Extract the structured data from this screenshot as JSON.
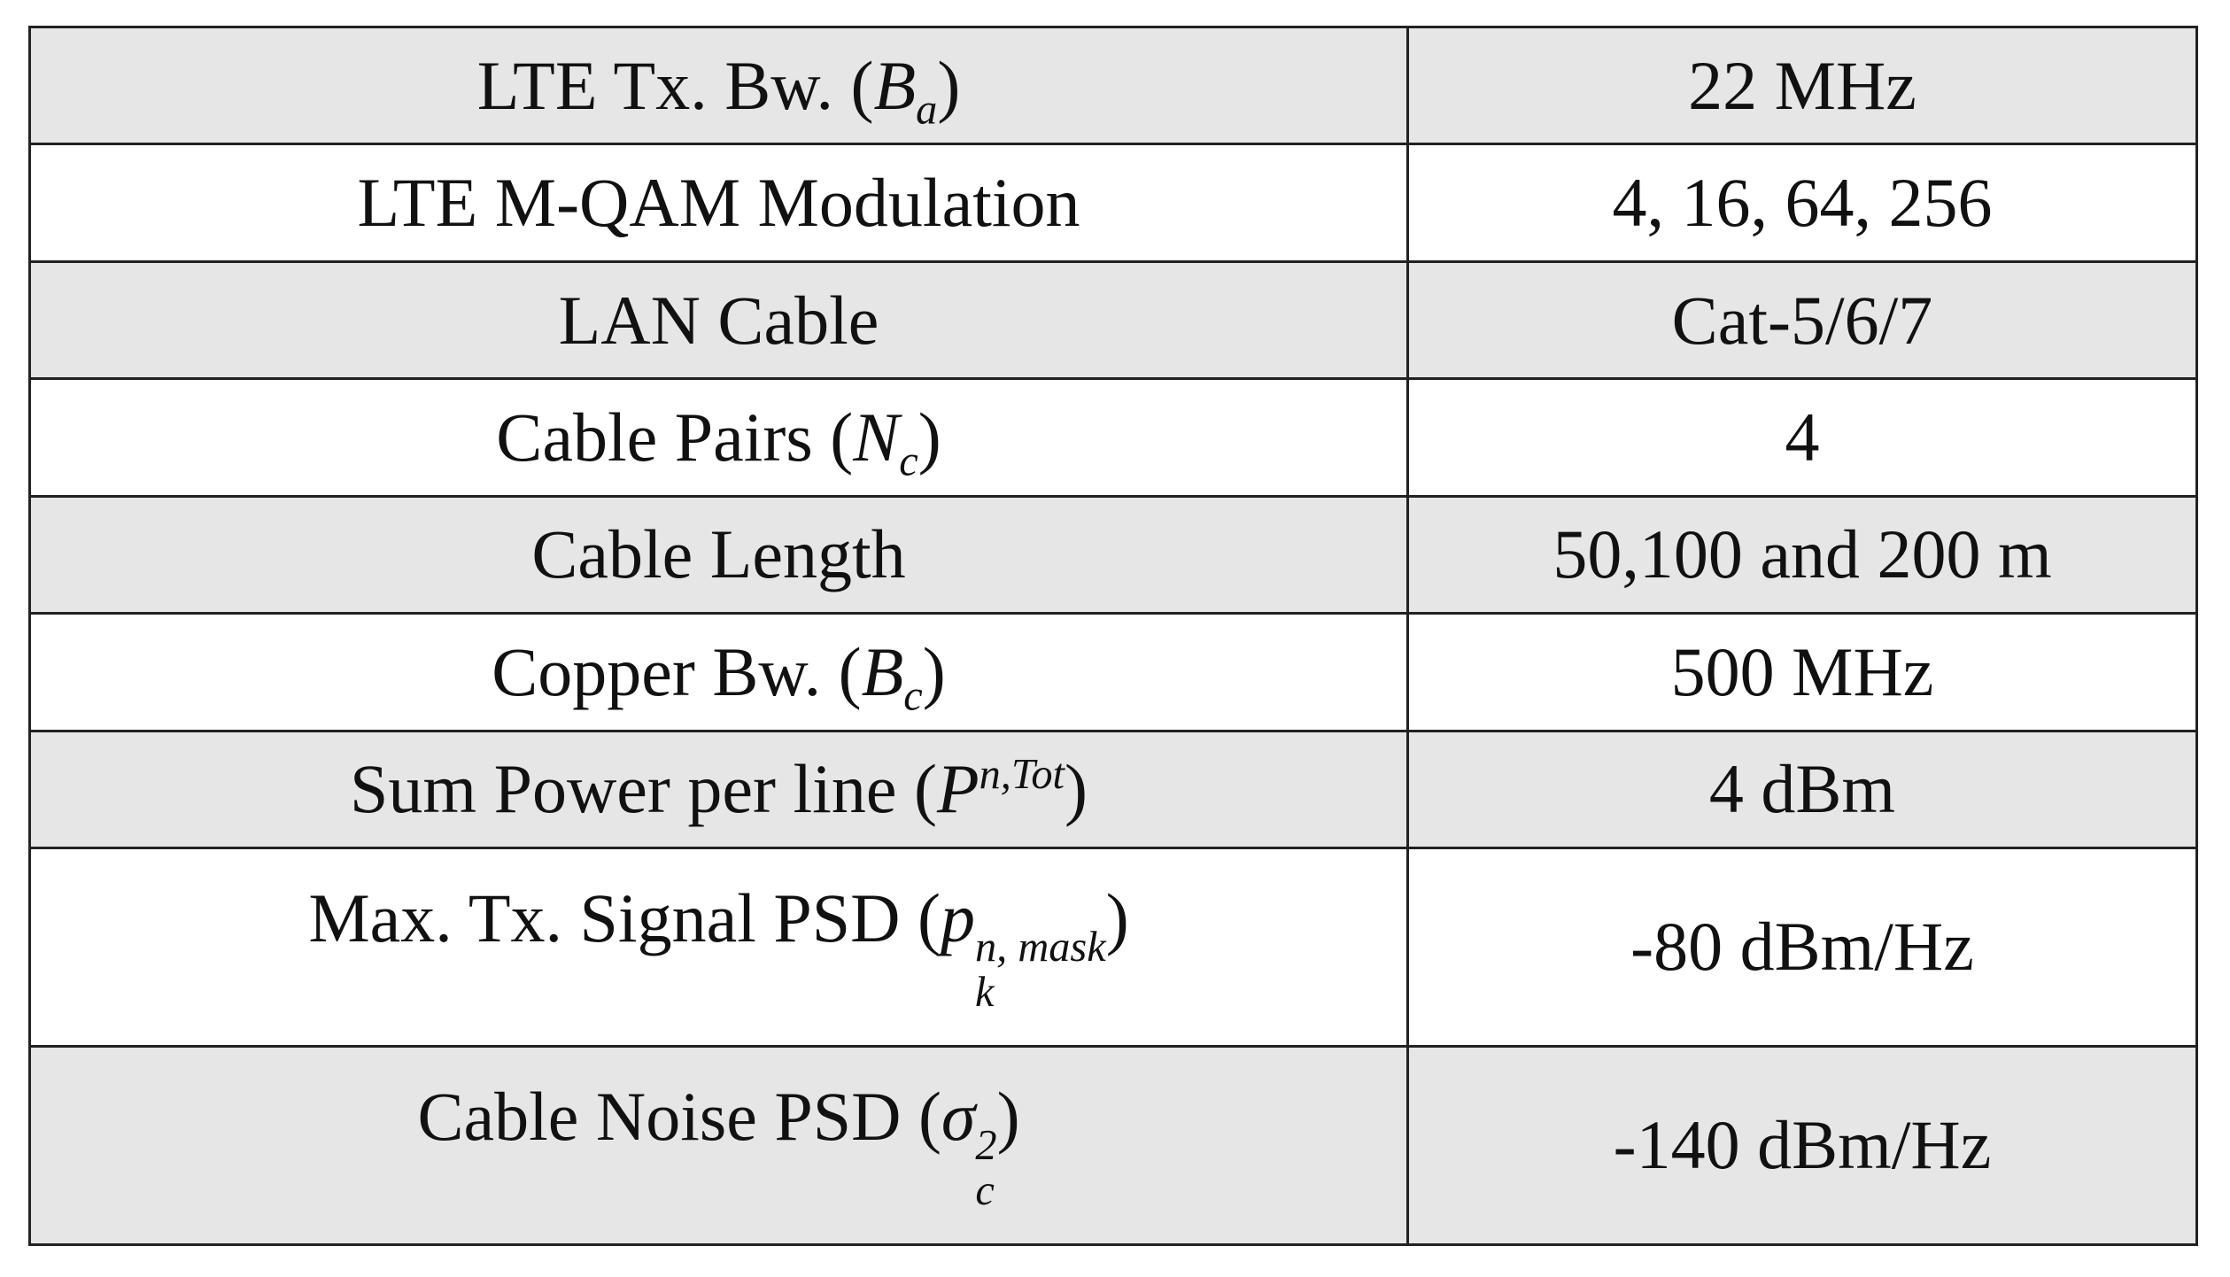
{
  "table": {
    "rows": [
      {
        "parameter": {
          "name": "LTE Tx. Bw.",
          "symbol": "B",
          "sub": "a"
        },
        "value": "22 MHz"
      },
      {
        "parameter": {
          "name": "LTE M-QAM Modulation"
        },
        "value": "4, 16, 64, 256"
      },
      {
        "parameter": {
          "name": "LAN Cable"
        },
        "value": "Cat-5/6/7"
      },
      {
        "parameter": {
          "name": "Cable Pairs",
          "symbol": "N",
          "sub": "c"
        },
        "value": "4"
      },
      {
        "parameter": {
          "name": "Cable Length"
        },
        "value": "50,100 and 200 m"
      },
      {
        "parameter": {
          "name": "Copper Bw.",
          "symbol": "B",
          "sub": "c"
        },
        "value": "500 MHz"
      },
      {
        "parameter": {
          "name": "Sum Power per line",
          "symbol": "P",
          "sup": "n,Tot"
        },
        "value": "4 dBm"
      },
      {
        "parameter": {
          "name": "Max. Tx. Signal PSD",
          "symbol": "p",
          "sub": "k",
          "sup": "n, mask"
        },
        "value": "-80 dBm/Hz"
      },
      {
        "parameter": {
          "name": "Cable Noise PSD",
          "symbol": "σ",
          "sub": "c",
          "sup": "2"
        },
        "value": "-140 dBm/Hz"
      }
    ]
  }
}
